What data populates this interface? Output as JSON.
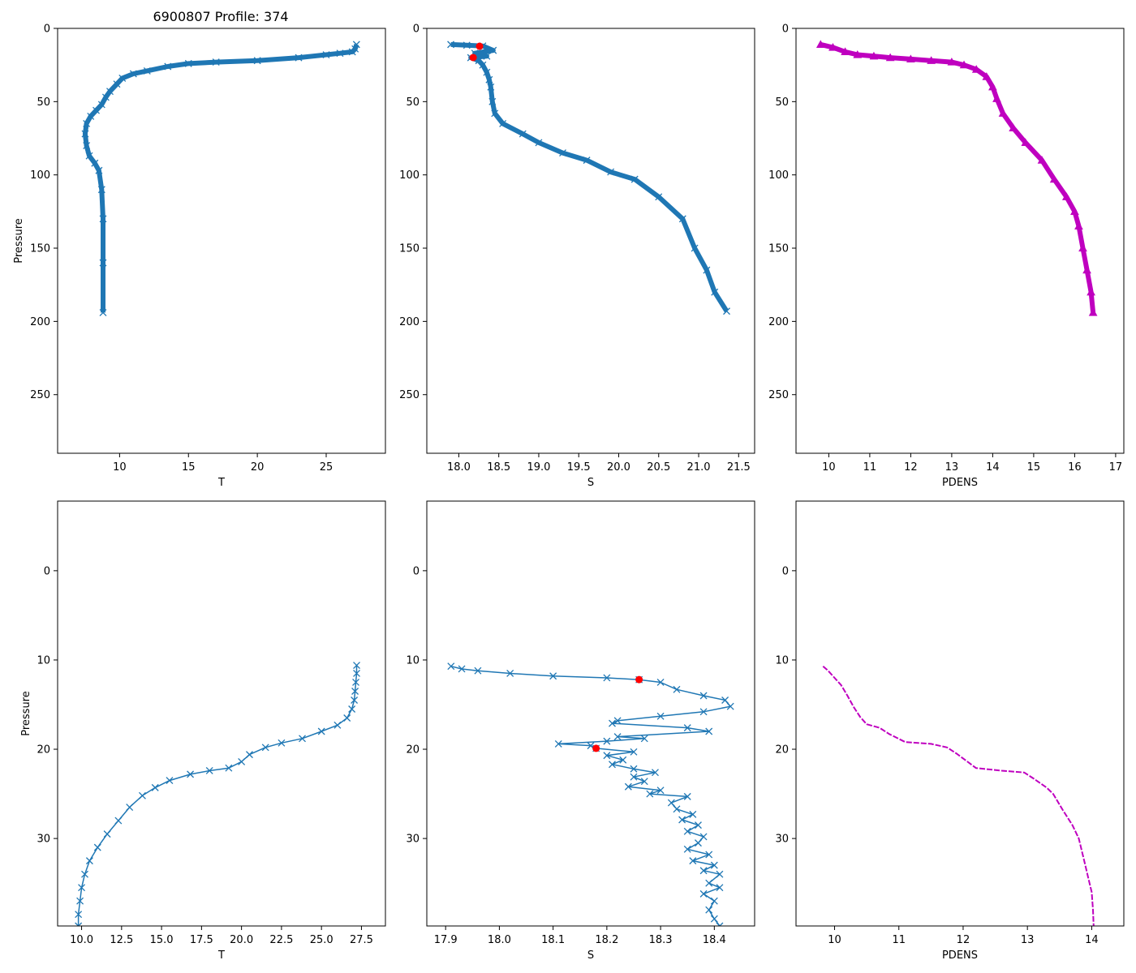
{
  "figure": {
    "title": "6900807 Profile: 374"
  },
  "colors": {
    "series": "#1f77b4",
    "pdens": "#bf00bf",
    "qc": "#ff0000",
    "frame": "#000000"
  },
  "chart_data": [
    {
      "type": "line",
      "id": "temp_full",
      "xlabel": "T",
      "ylabel": "Pressure",
      "xlim": [
        5.5,
        29.3
      ],
      "ylim": [
        290,
        0
      ],
      "y_inverted": true,
      "xticks": [
        10,
        15,
        20,
        25
      ],
      "yticks": [
        0,
        50,
        100,
        150,
        200,
        250
      ],
      "xtick_labels": [
        "10",
        "15",
        "20",
        "25"
      ],
      "ytick_labels": [
        "0",
        "50",
        "100",
        "150",
        "200",
        "250"
      ],
      "marker": "x",
      "series": [
        {
          "name": "T",
          "points": [
            [
              27.2,
              11
            ],
            [
              27.1,
              14
            ],
            [
              26.9,
              16
            ],
            [
              26,
              17
            ],
            [
              25,
              18
            ],
            [
              23,
              20
            ],
            [
              20,
              22
            ],
            [
              17,
              23
            ],
            [
              15,
              24
            ],
            [
              13.5,
              26
            ],
            [
              12,
              29
            ],
            [
              11,
              31
            ],
            [
              10.2,
              34
            ],
            [
              9.8,
              38
            ],
            [
              9.3,
              43
            ],
            [
              9,
              47
            ],
            [
              8.7,
              52
            ],
            [
              8.3,
              56
            ],
            [
              7.9,
              60
            ],
            [
              7.6,
              65
            ],
            [
              7.5,
              72
            ],
            [
              7.6,
              80
            ],
            [
              7.8,
              87
            ],
            [
              8.2,
              92
            ],
            [
              8.5,
              97
            ],
            [
              8.7,
              110
            ],
            [
              8.8,
              130
            ],
            [
              8.8,
              160
            ],
            [
              8.8,
              194
            ]
          ]
        }
      ]
    },
    {
      "type": "line",
      "id": "sal_full",
      "xlabel": "S",
      "ylabel": "",
      "xlim": [
        17.6,
        21.7
      ],
      "ylim": [
        290,
        0
      ],
      "y_inverted": true,
      "xticks": [
        18.0,
        18.5,
        19.0,
        19.5,
        20.0,
        20.5,
        21.0,
        21.5
      ],
      "yticks": [
        0,
        50,
        100,
        150,
        200,
        250
      ],
      "xtick_labels": [
        "18.0",
        "18.5",
        "19.0",
        "19.5",
        "20.0",
        "20.5",
        "21.0",
        "21.5"
      ],
      "ytick_labels": [
        "0",
        "50",
        "100",
        "150",
        "200",
        "250"
      ],
      "marker": "x",
      "series": [
        {
          "name": "S",
          "points": [
            [
              17.9,
              11
            ],
            [
              18.1,
              11.5
            ],
            [
              18.3,
              12
            ],
            [
              18.43,
              15
            ],
            [
              18.2,
              17
            ],
            [
              18.35,
              19
            ],
            [
              18.15,
              20
            ],
            [
              18.25,
              22
            ],
            [
              18.3,
              25
            ],
            [
              18.35,
              30
            ],
            [
              18.38,
              35
            ],
            [
              18.4,
              40
            ],
            [
              18.42,
              50
            ],
            [
              18.45,
              58
            ],
            [
              18.55,
              65
            ],
            [
              18.8,
              72
            ],
            [
              19.0,
              78
            ],
            [
              19.3,
              85
            ],
            [
              19.6,
              90
            ],
            [
              19.9,
              98
            ],
            [
              20.2,
              103
            ],
            [
              20.5,
              115
            ],
            [
              20.8,
              130
            ],
            [
              20.95,
              150
            ],
            [
              21.1,
              165
            ],
            [
              21.2,
              180
            ],
            [
              21.35,
              193
            ]
          ]
        }
      ],
      "highlights": [
        {
          "x": 18.26,
          "y": 12.2
        },
        {
          "x": 18.18,
          "y": 19.9
        }
      ]
    },
    {
      "type": "line",
      "id": "pdens_full",
      "xlabel": "PDENS",
      "ylabel": "",
      "xlim": [
        9.2,
        17.2
      ],
      "ylim": [
        290,
        0
      ],
      "y_inverted": true,
      "xticks": [
        10,
        11,
        12,
        13,
        14,
        15,
        16,
        17
      ],
      "yticks": [
        0,
        50,
        100,
        150,
        200,
        250
      ],
      "xtick_labels": [
        "10",
        "11",
        "12",
        "13",
        "14",
        "15",
        "16",
        "17"
      ],
      "ytick_labels": [
        "0",
        "50",
        "100",
        "150",
        "200",
        "250"
      ],
      "marker": "^",
      "series": [
        {
          "name": "PDENS",
          "points": [
            [
              9.8,
              11
            ],
            [
              10.1,
              13
            ],
            [
              10.4,
              16
            ],
            [
              10.7,
              18
            ],
            [
              11.1,
              19
            ],
            [
              11.5,
              20
            ],
            [
              12,
              21
            ],
            [
              12.5,
              22
            ],
            [
              13,
              23
            ],
            [
              13.3,
              25
            ],
            [
              13.6,
              28
            ],
            [
              13.85,
              33
            ],
            [
              14,
              40
            ],
            [
              14.1,
              48
            ],
            [
              14.25,
              58
            ],
            [
              14.5,
              68
            ],
            [
              14.8,
              78
            ],
            [
              15.2,
              90
            ],
            [
              15.5,
              103
            ],
            [
              15.8,
              115
            ],
            [
              16.0,
              125
            ],
            [
              16.1,
              135
            ],
            [
              16.2,
              150
            ],
            [
              16.3,
              165
            ],
            [
              16.4,
              180
            ],
            [
              16.45,
              194
            ]
          ]
        }
      ]
    },
    {
      "type": "line",
      "id": "temp_zoom",
      "xlabel": "T",
      "ylabel": "Pressure",
      "xlim": [
        8.5,
        29.0
      ],
      "ylim": [
        39.8,
        -7.8
      ],
      "y_inverted": true,
      "xticks": [
        10.0,
        12.5,
        15.0,
        17.5,
        20.0,
        22.5,
        25.0,
        27.5
      ],
      "yticks": [
        0,
        10,
        20,
        30
      ],
      "xtick_labels": [
        "10.0",
        "12.5",
        "15.0",
        "17.5",
        "20.0",
        "22.5",
        "25.0",
        "27.5"
      ],
      "ytick_labels": [
        "0",
        "10",
        "20",
        "30"
      ],
      "marker": "x",
      "series": [
        {
          "name": "T",
          "points": [
            [
              27.2,
              10.6
            ],
            [
              27.2,
              11.5
            ],
            [
              27.15,
              12.5
            ],
            [
              27.1,
              13.5
            ],
            [
              27.05,
              14.5
            ],
            [
              26.9,
              15.5
            ],
            [
              26.6,
              16.5
            ],
            [
              26,
              17.3
            ],
            [
              25,
              18
            ],
            [
              23.8,
              18.8
            ],
            [
              22.5,
              19.3
            ],
            [
              21.5,
              19.8
            ],
            [
              20.5,
              20.6
            ],
            [
              20,
              21.4
            ],
            [
              19.2,
              22.1
            ],
            [
              18,
              22.4
            ],
            [
              16.8,
              22.8
            ],
            [
              15.5,
              23.5
            ],
            [
              14.6,
              24.3
            ],
            [
              13.8,
              25.2
            ],
            [
              13.0,
              26.5
            ],
            [
              12.3,
              28
            ],
            [
              11.6,
              29.5
            ],
            [
              11.0,
              31
            ],
            [
              10.5,
              32.5
            ],
            [
              10.2,
              34
            ],
            [
              10.0,
              35.5
            ],
            [
              9.9,
              37
            ],
            [
              9.8,
              38.5
            ],
            [
              9.8,
              39.8
            ]
          ]
        }
      ]
    },
    {
      "type": "line",
      "id": "sal_zoom",
      "xlabel": "S",
      "ylabel": "",
      "xlim": [
        17.865,
        18.475
      ],
      "ylim": [
        39.8,
        -7.8
      ],
      "y_inverted": true,
      "xticks": [
        17.9,
        18.0,
        18.1,
        18.2,
        18.3,
        18.4
      ],
      "yticks": [
        0,
        10,
        20,
        30
      ],
      "xtick_labels": [
        "17.9",
        "18.0",
        "18.1",
        "18.2",
        "18.3",
        "18.4"
      ],
      "ytick_labels": [
        "0",
        "10",
        "20",
        "30"
      ],
      "marker": "x",
      "series": [
        {
          "name": "S",
          "points": [
            [
              17.91,
              10.7
            ],
            [
              17.93,
              11
            ],
            [
              17.96,
              11.2
            ],
            [
              18.02,
              11.5
            ],
            [
              18.1,
              11.8
            ],
            [
              18.2,
              12.0
            ],
            [
              18.26,
              12.2
            ],
            [
              18.3,
              12.5
            ],
            [
              18.33,
              13.3
            ],
            [
              18.38,
              14
            ],
            [
              18.42,
              14.5
            ],
            [
              18.43,
              15.2
            ],
            [
              18.38,
              15.8
            ],
            [
              18.3,
              16.3
            ],
            [
              18.22,
              16.8
            ],
            [
              18.21,
              17.1
            ],
            [
              18.35,
              17.6
            ],
            [
              18.39,
              18
            ],
            [
              18.22,
              18.6
            ],
            [
              18.27,
              18.8
            ],
            [
              18.2,
              19.1
            ],
            [
              18.11,
              19.4
            ],
            [
              18.17,
              19.6
            ],
            [
              18.18,
              19.9
            ],
            [
              18.25,
              20.3
            ],
            [
              18.2,
              20.7
            ],
            [
              18.23,
              21.2
            ],
            [
              18.21,
              21.7
            ],
            [
              18.25,
              22.2
            ],
            [
              18.29,
              22.6
            ],
            [
              18.25,
              23.1
            ],
            [
              18.27,
              23.6
            ],
            [
              18.24,
              24.2
            ],
            [
              18.3,
              24.6
            ],
            [
              18.28,
              25.0
            ],
            [
              18.35,
              25.3
            ],
            [
              18.32,
              26
            ],
            [
              18.33,
              26.7
            ],
            [
              18.36,
              27.3
            ],
            [
              18.34,
              27.9
            ],
            [
              18.37,
              28.5
            ],
            [
              18.35,
              29.2
            ],
            [
              18.38,
              29.8
            ],
            [
              18.37,
              30.5
            ],
            [
              18.35,
              31.2
            ],
            [
              18.39,
              31.8
            ],
            [
              18.36,
              32.5
            ],
            [
              18.4,
              33
            ],
            [
              18.38,
              33.6
            ],
            [
              18.41,
              34
            ],
            [
              18.39,
              35
            ],
            [
              18.41,
              35.5
            ],
            [
              18.38,
              36.2
            ],
            [
              18.4,
              37
            ],
            [
              18.39,
              38
            ],
            [
              18.4,
              39
            ],
            [
              18.41,
              39.8
            ]
          ]
        }
      ],
      "highlights": [
        {
          "x": 18.26,
          "y": 12.2
        },
        {
          "x": 18.18,
          "y": 19.9
        }
      ]
    },
    {
      "type": "line",
      "id": "pdens_zoom",
      "xlabel": "PDENS",
      "ylabel": "",
      "xlim": [
        9.4,
        14.5
      ],
      "ylim": [
        39.8,
        -7.8
      ],
      "y_inverted": true,
      "xticks": [
        10,
        11,
        12,
        13,
        14
      ],
      "yticks": [
        0,
        10,
        20,
        30
      ],
      "xtick_labels": [
        "10",
        "11",
        "12",
        "13",
        "14"
      ],
      "ytick_labels": [
        "0",
        "10",
        "20",
        "30"
      ],
      "marker": "none",
      "series": [
        {
          "name": "PDENS",
          "points": [
            [
              9.82,
              10.7
            ],
            [
              9.9,
              11.2
            ],
            [
              10.0,
              12
            ],
            [
              10.1,
              12.8
            ],
            [
              10.2,
              14
            ],
            [
              10.3,
              15.3
            ],
            [
              10.4,
              16.4
            ],
            [
              10.5,
              17.2
            ],
            [
              10.7,
              17.6
            ],
            [
              10.85,
              18.3
            ],
            [
              11.1,
              19.2
            ],
            [
              11.5,
              19.4
            ],
            [
              11.75,
              19.8
            ],
            [
              11.9,
              20.5
            ],
            [
              12.05,
              21.3
            ],
            [
              12.2,
              22.1
            ],
            [
              12.6,
              22.4
            ],
            [
              12.95,
              22.6
            ],
            [
              13.1,
              23.3
            ],
            [
              13.3,
              24.3
            ],
            [
              13.4,
              25.0
            ],
            [
              13.55,
              26.8
            ],
            [
              13.7,
              28.5
            ],
            [
              13.8,
              30
            ],
            [
              13.85,
              31.5
            ],
            [
              13.9,
              33
            ],
            [
              13.95,
              34.5
            ],
            [
              14.0,
              36
            ],
            [
              14.02,
              38
            ],
            [
              14.03,
              39.8
            ]
          ]
        }
      ]
    }
  ]
}
